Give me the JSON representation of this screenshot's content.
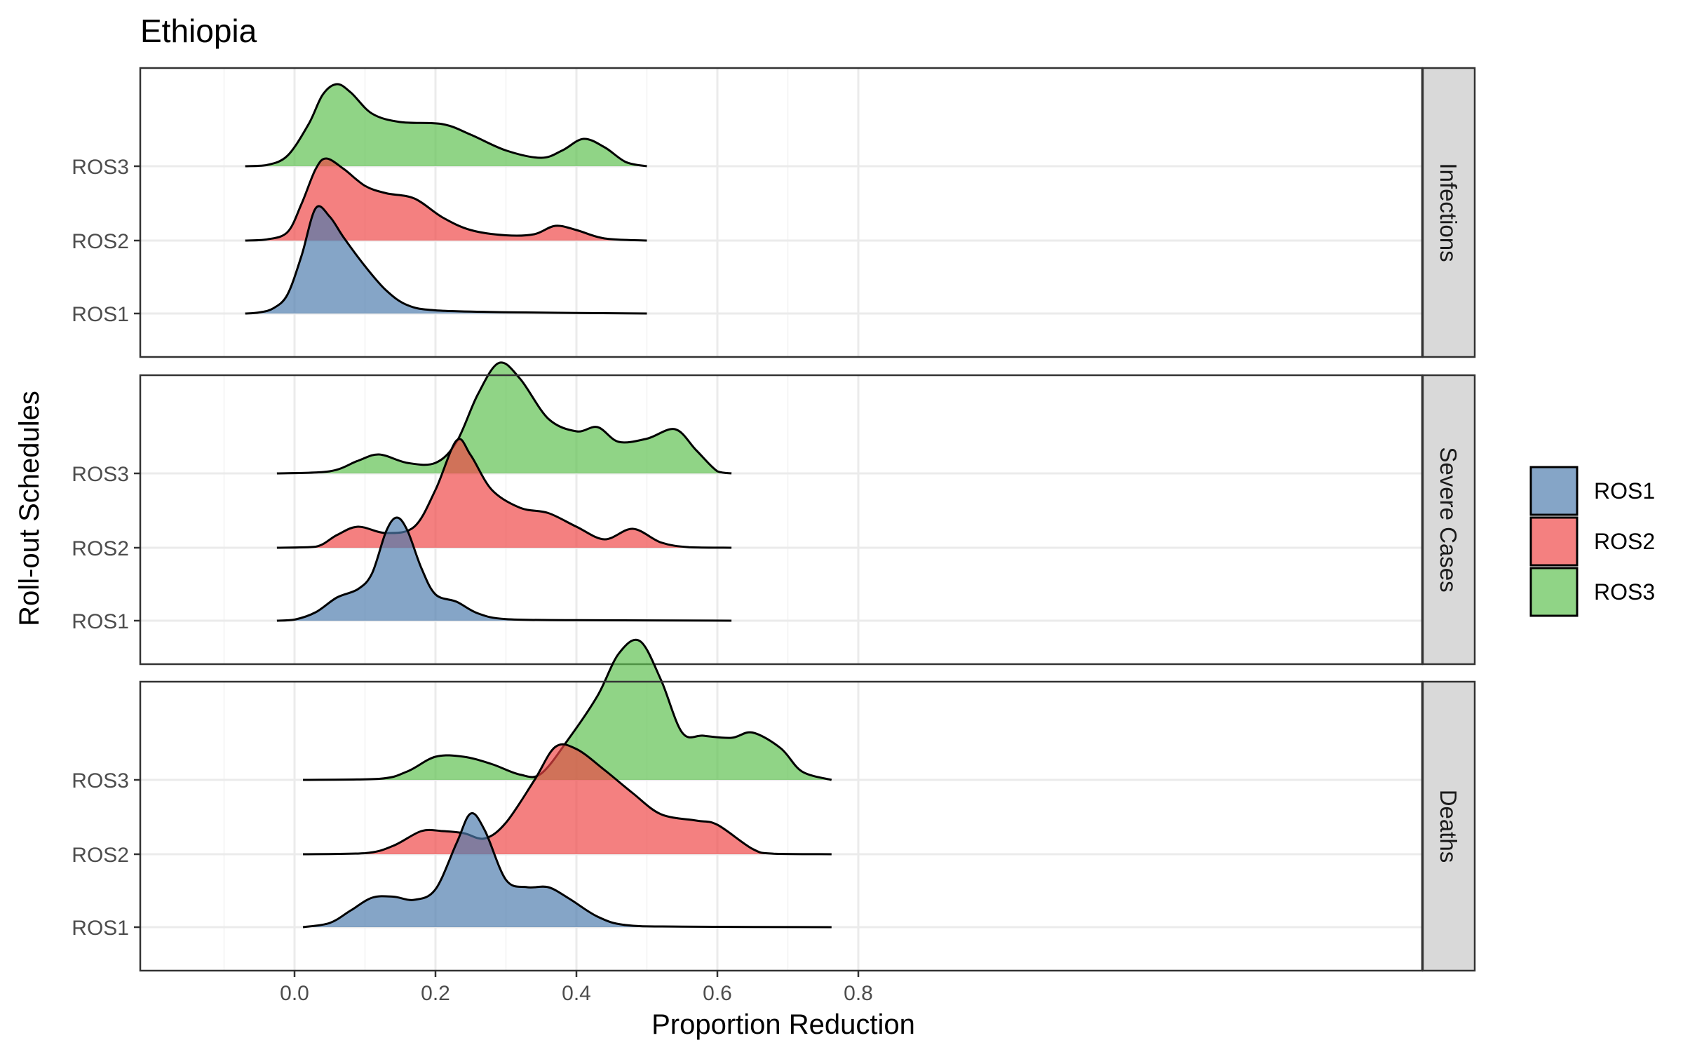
{
  "chart_data": {
    "type": "ridgeline",
    "title": "Ethiopia",
    "xlabel": "Proportion Reduction",
    "ylabel": "Roll-out Schedules",
    "xlim": [
      -0.1,
      0.8
    ],
    "x_ticks": [
      0.0,
      0.2,
      0.4,
      0.6,
      0.8
    ],
    "x_tick_labels": [
      "0.0",
      "0.2",
      "0.4",
      "0.6",
      "0.8"
    ],
    "categories": [
      "ROS1",
      "ROS2",
      "ROS3"
    ],
    "grid": true,
    "legend_position": "right",
    "legend": [
      {
        "label": "ROS1",
        "color": "#4b7bad"
      },
      {
        "label": "ROS2",
        "color": "#ef4444"
      },
      {
        "label": "ROS3",
        "color": "#5cbf4c"
      }
    ],
    "panels": [
      {
        "strip": "Infections",
        "range": [
          -0.07,
          0.5
        ],
        "series": [
          {
            "name": "ROS1",
            "points": [
              [
                -0.07,
                0
              ],
              [
                -0.05,
                0.01
              ],
              [
                -0.03,
                0.05
              ],
              [
                -0.01,
                0.18
              ],
              [
                0.01,
                0.55
              ],
              [
                0.03,
                1.0
              ],
              [
                0.05,
                0.92
              ],
              [
                0.07,
                0.72
              ],
              [
                0.1,
                0.45
              ],
              [
                0.13,
                0.22
              ],
              [
                0.16,
                0.08
              ],
              [
                0.2,
                0.03
              ],
              [
                0.3,
                0.012
              ],
              [
                0.4,
                0.005
              ],
              [
                0.5,
                0
              ]
            ]
          },
          {
            "name": "ROS2",
            "points": [
              [
                -0.07,
                0
              ],
              [
                -0.04,
                0.01
              ],
              [
                -0.01,
                0.08
              ],
              [
                0.01,
                0.35
              ],
              [
                0.03,
                0.68
              ],
              [
                0.045,
                0.78
              ],
              [
                0.07,
                0.68
              ],
              [
                0.1,
                0.52
              ],
              [
                0.13,
                0.45
              ],
              [
                0.17,
                0.4
              ],
              [
                0.21,
                0.22
              ],
              [
                0.25,
                0.1
              ],
              [
                0.3,
                0.05
              ],
              [
                0.34,
                0.06
              ],
              [
                0.37,
                0.14
              ],
              [
                0.4,
                0.1
              ],
              [
                0.44,
                0.02
              ],
              [
                0.5,
                0
              ]
            ]
          },
          {
            "name": "ROS3",
            "points": [
              [
                -0.07,
                0
              ],
              [
                -0.04,
                0.01
              ],
              [
                -0.01,
                0.1
              ],
              [
                0.02,
                0.4
              ],
              [
                0.04,
                0.68
              ],
              [
                0.06,
                0.78
              ],
              [
                0.08,
                0.7
              ],
              [
                0.11,
                0.5
              ],
              [
                0.15,
                0.42
              ],
              [
                0.21,
                0.4
              ],
              [
                0.25,
                0.3
              ],
              [
                0.3,
                0.15
              ],
              [
                0.35,
                0.08
              ],
              [
                0.38,
                0.15
              ],
              [
                0.41,
                0.26
              ],
              [
                0.44,
                0.18
              ],
              [
                0.47,
                0.04
              ],
              [
                0.5,
                0
              ]
            ]
          }
        ]
      },
      {
        "strip": "Severe Cases",
        "range": [
          -0.025,
          0.62
        ],
        "series": [
          {
            "name": "ROS1",
            "points": [
              [
                -0.025,
                0
              ],
              [
                0.0,
                0.01
              ],
              [
                0.03,
                0.08
              ],
              [
                0.06,
                0.22
              ],
              [
                0.09,
                0.3
              ],
              [
                0.11,
                0.45
              ],
              [
                0.13,
                0.85
              ],
              [
                0.145,
                0.98
              ],
              [
                0.16,
                0.86
              ],
              [
                0.18,
                0.5
              ],
              [
                0.2,
                0.25
              ],
              [
                0.23,
                0.18
              ],
              [
                0.26,
                0.07
              ],
              [
                0.3,
                0.015
              ],
              [
                0.4,
                0.005
              ],
              [
                0.62,
                0
              ]
            ]
          },
          {
            "name": "ROS2",
            "points": [
              [
                -0.025,
                0
              ],
              [
                0.03,
                0.01
              ],
              [
                0.06,
                0.12
              ],
              [
                0.09,
                0.2
              ],
              [
                0.13,
                0.14
              ],
              [
                0.17,
                0.2
              ],
              [
                0.2,
                0.55
              ],
              [
                0.23,
                1.02
              ],
              [
                0.25,
                0.88
              ],
              [
                0.28,
                0.55
              ],
              [
                0.32,
                0.38
              ],
              [
                0.36,
                0.33
              ],
              [
                0.4,
                0.2
              ],
              [
                0.44,
                0.08
              ],
              [
                0.48,
                0.18
              ],
              [
                0.52,
                0.05
              ],
              [
                0.56,
                0.005
              ],
              [
                0.62,
                0
              ]
            ]
          },
          {
            "name": "ROS3",
            "points": [
              [
                -0.025,
                0
              ],
              [
                0.05,
                0.02
              ],
              [
                0.09,
                0.12
              ],
              [
                0.12,
                0.18
              ],
              [
                0.16,
                0.1
              ],
              [
                0.2,
                0.1
              ],
              [
                0.23,
                0.3
              ],
              [
                0.26,
                0.75
              ],
              [
                0.29,
                1.05
              ],
              [
                0.32,
                0.9
              ],
              [
                0.36,
                0.52
              ],
              [
                0.4,
                0.4
              ],
              [
                0.43,
                0.44
              ],
              [
                0.46,
                0.3
              ],
              [
                0.5,
                0.33
              ],
              [
                0.54,
                0.42
              ],
              [
                0.57,
                0.22
              ],
              [
                0.6,
                0.02
              ],
              [
                0.62,
                0
              ]
            ]
          }
        ]
      },
      {
        "strip": "Deaths",
        "range": [
          0.012,
          0.762
        ],
        "series": [
          {
            "name": "ROS1",
            "points": [
              [
                0.012,
                0
              ],
              [
                0.05,
                0.04
              ],
              [
                0.08,
                0.16
              ],
              [
                0.11,
                0.28
              ],
              [
                0.14,
                0.29
              ],
              [
                0.17,
                0.26
              ],
              [
                0.2,
                0.36
              ],
              [
                0.23,
                0.8
              ],
              [
                0.25,
                1.08
              ],
              [
                0.27,
                0.92
              ],
              [
                0.3,
                0.45
              ],
              [
                0.33,
                0.38
              ],
              [
                0.36,
                0.38
              ],
              [
                0.39,
                0.27
              ],
              [
                0.43,
                0.1
              ],
              [
                0.47,
                0.02
              ],
              [
                0.55,
                0.005
              ],
              [
                0.762,
                0
              ]
            ]
          },
          {
            "name": "ROS2",
            "points": [
              [
                0.012,
                0
              ],
              [
                0.1,
                0.01
              ],
              [
                0.14,
                0.08
              ],
              [
                0.18,
                0.22
              ],
              [
                0.21,
                0.22
              ],
              [
                0.24,
                0.2
              ],
              [
                0.27,
                0.15
              ],
              [
                0.3,
                0.3
              ],
              [
                0.34,
                0.7
              ],
              [
                0.37,
                1.02
              ],
              [
                0.4,
                1.0
              ],
              [
                0.44,
                0.8
              ],
              [
                0.48,
                0.58
              ],
              [
                0.52,
                0.38
              ],
              [
                0.57,
                0.32
              ],
              [
                0.6,
                0.28
              ],
              [
                0.65,
                0.05
              ],
              [
                0.68,
                0.005
              ],
              [
                0.762,
                0
              ]
            ]
          },
          {
            "name": "ROS3",
            "points": [
              [
                0.012,
                0
              ],
              [
                0.12,
                0.01
              ],
              [
                0.16,
                0.08
              ],
              [
                0.2,
                0.22
              ],
              [
                0.24,
                0.22
              ],
              [
                0.28,
                0.15
              ],
              [
                0.32,
                0.05
              ],
              [
                0.35,
                0.06
              ],
              [
                0.39,
                0.4
              ],
              [
                0.43,
                0.8
              ],
              [
                0.46,
                1.2
              ],
              [
                0.49,
                1.32
              ],
              [
                0.52,
                0.95
              ],
              [
                0.55,
                0.45
              ],
              [
                0.58,
                0.42
              ],
              [
                0.62,
                0.4
              ],
              [
                0.65,
                0.45
              ],
              [
                0.69,
                0.3
              ],
              [
                0.72,
                0.08
              ],
              [
                0.762,
                0
              ]
            ]
          }
        ]
      }
    ]
  }
}
